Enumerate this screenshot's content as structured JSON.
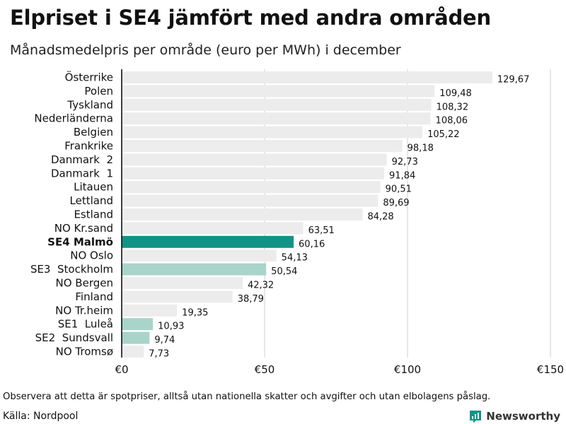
{
  "title": "Elpriset i SE4 jämfört med andra områden",
  "subtitle": "Månadsmedelpris per område (euro per MWh) i december",
  "footnote": "Observera att detta är spotpriser, alltså utan nationella skatter och avgifter och utan elbolagens påslag.",
  "source": "Källa: Nordpool",
  "brand": "Newsworthy",
  "colors": {
    "highlight": "#119486",
    "swedish": "#a8d4ca",
    "other": "#ececec",
    "axis": "#000000",
    "grid": "#cfcfcf"
  },
  "chart_data": {
    "type": "bar",
    "orientation": "horizontal",
    "title": "Elpriset i SE4 jämfört med andra områden",
    "subtitle": "Månadsmedelpris per område (euro per MWh) i december",
    "xlabel": "",
    "ylabel": "",
    "xlim": [
      0,
      150
    ],
    "xticks": [
      0,
      50,
      100,
      150
    ],
    "xtick_labels": [
      "€0",
      "€50",
      "€100",
      "€150"
    ],
    "grid": true,
    "categories": [
      "Österrike",
      "Polen",
      "Tyskland",
      "Nederländerna",
      "Belgien",
      "Frankrike",
      "Danmark  2",
      "Danmark  1",
      "Litauen",
      "Lettland",
      "Estland",
      "NO Kr.sand",
      "SE4 Malmö",
      "NO Oslo",
      "SE3  Stockholm",
      "NO Bergen",
      "Finland",
      "NO Tr.heim",
      "SE1  Luleå",
      "SE2  Sundsvall",
      "NO Tromsø"
    ],
    "values": [
      129.67,
      109.48,
      108.32,
      108.06,
      105.22,
      98.18,
      92.73,
      91.84,
      90.51,
      89.69,
      84.28,
      63.51,
      60.16,
      54.13,
      50.54,
      42.32,
      38.79,
      19.35,
      10.93,
      9.74,
      7.73
    ],
    "value_labels": [
      "129,67",
      "109,48",
      "108,32",
      "108,06",
      "105,22",
      "98,18",
      "92,73",
      "91,84",
      "90,51",
      "89,69",
      "84,28",
      "63,51",
      "60,16",
      "54,13",
      "50,54",
      "42,32",
      "38,79",
      "19,35",
      "10,93",
      "9,74",
      "7,73"
    ],
    "groups": [
      "other",
      "other",
      "other",
      "other",
      "other",
      "other",
      "other",
      "other",
      "other",
      "other",
      "other",
      "other",
      "highlight",
      "other",
      "swedish",
      "other",
      "other",
      "other",
      "swedish",
      "swedish",
      "other"
    ]
  }
}
